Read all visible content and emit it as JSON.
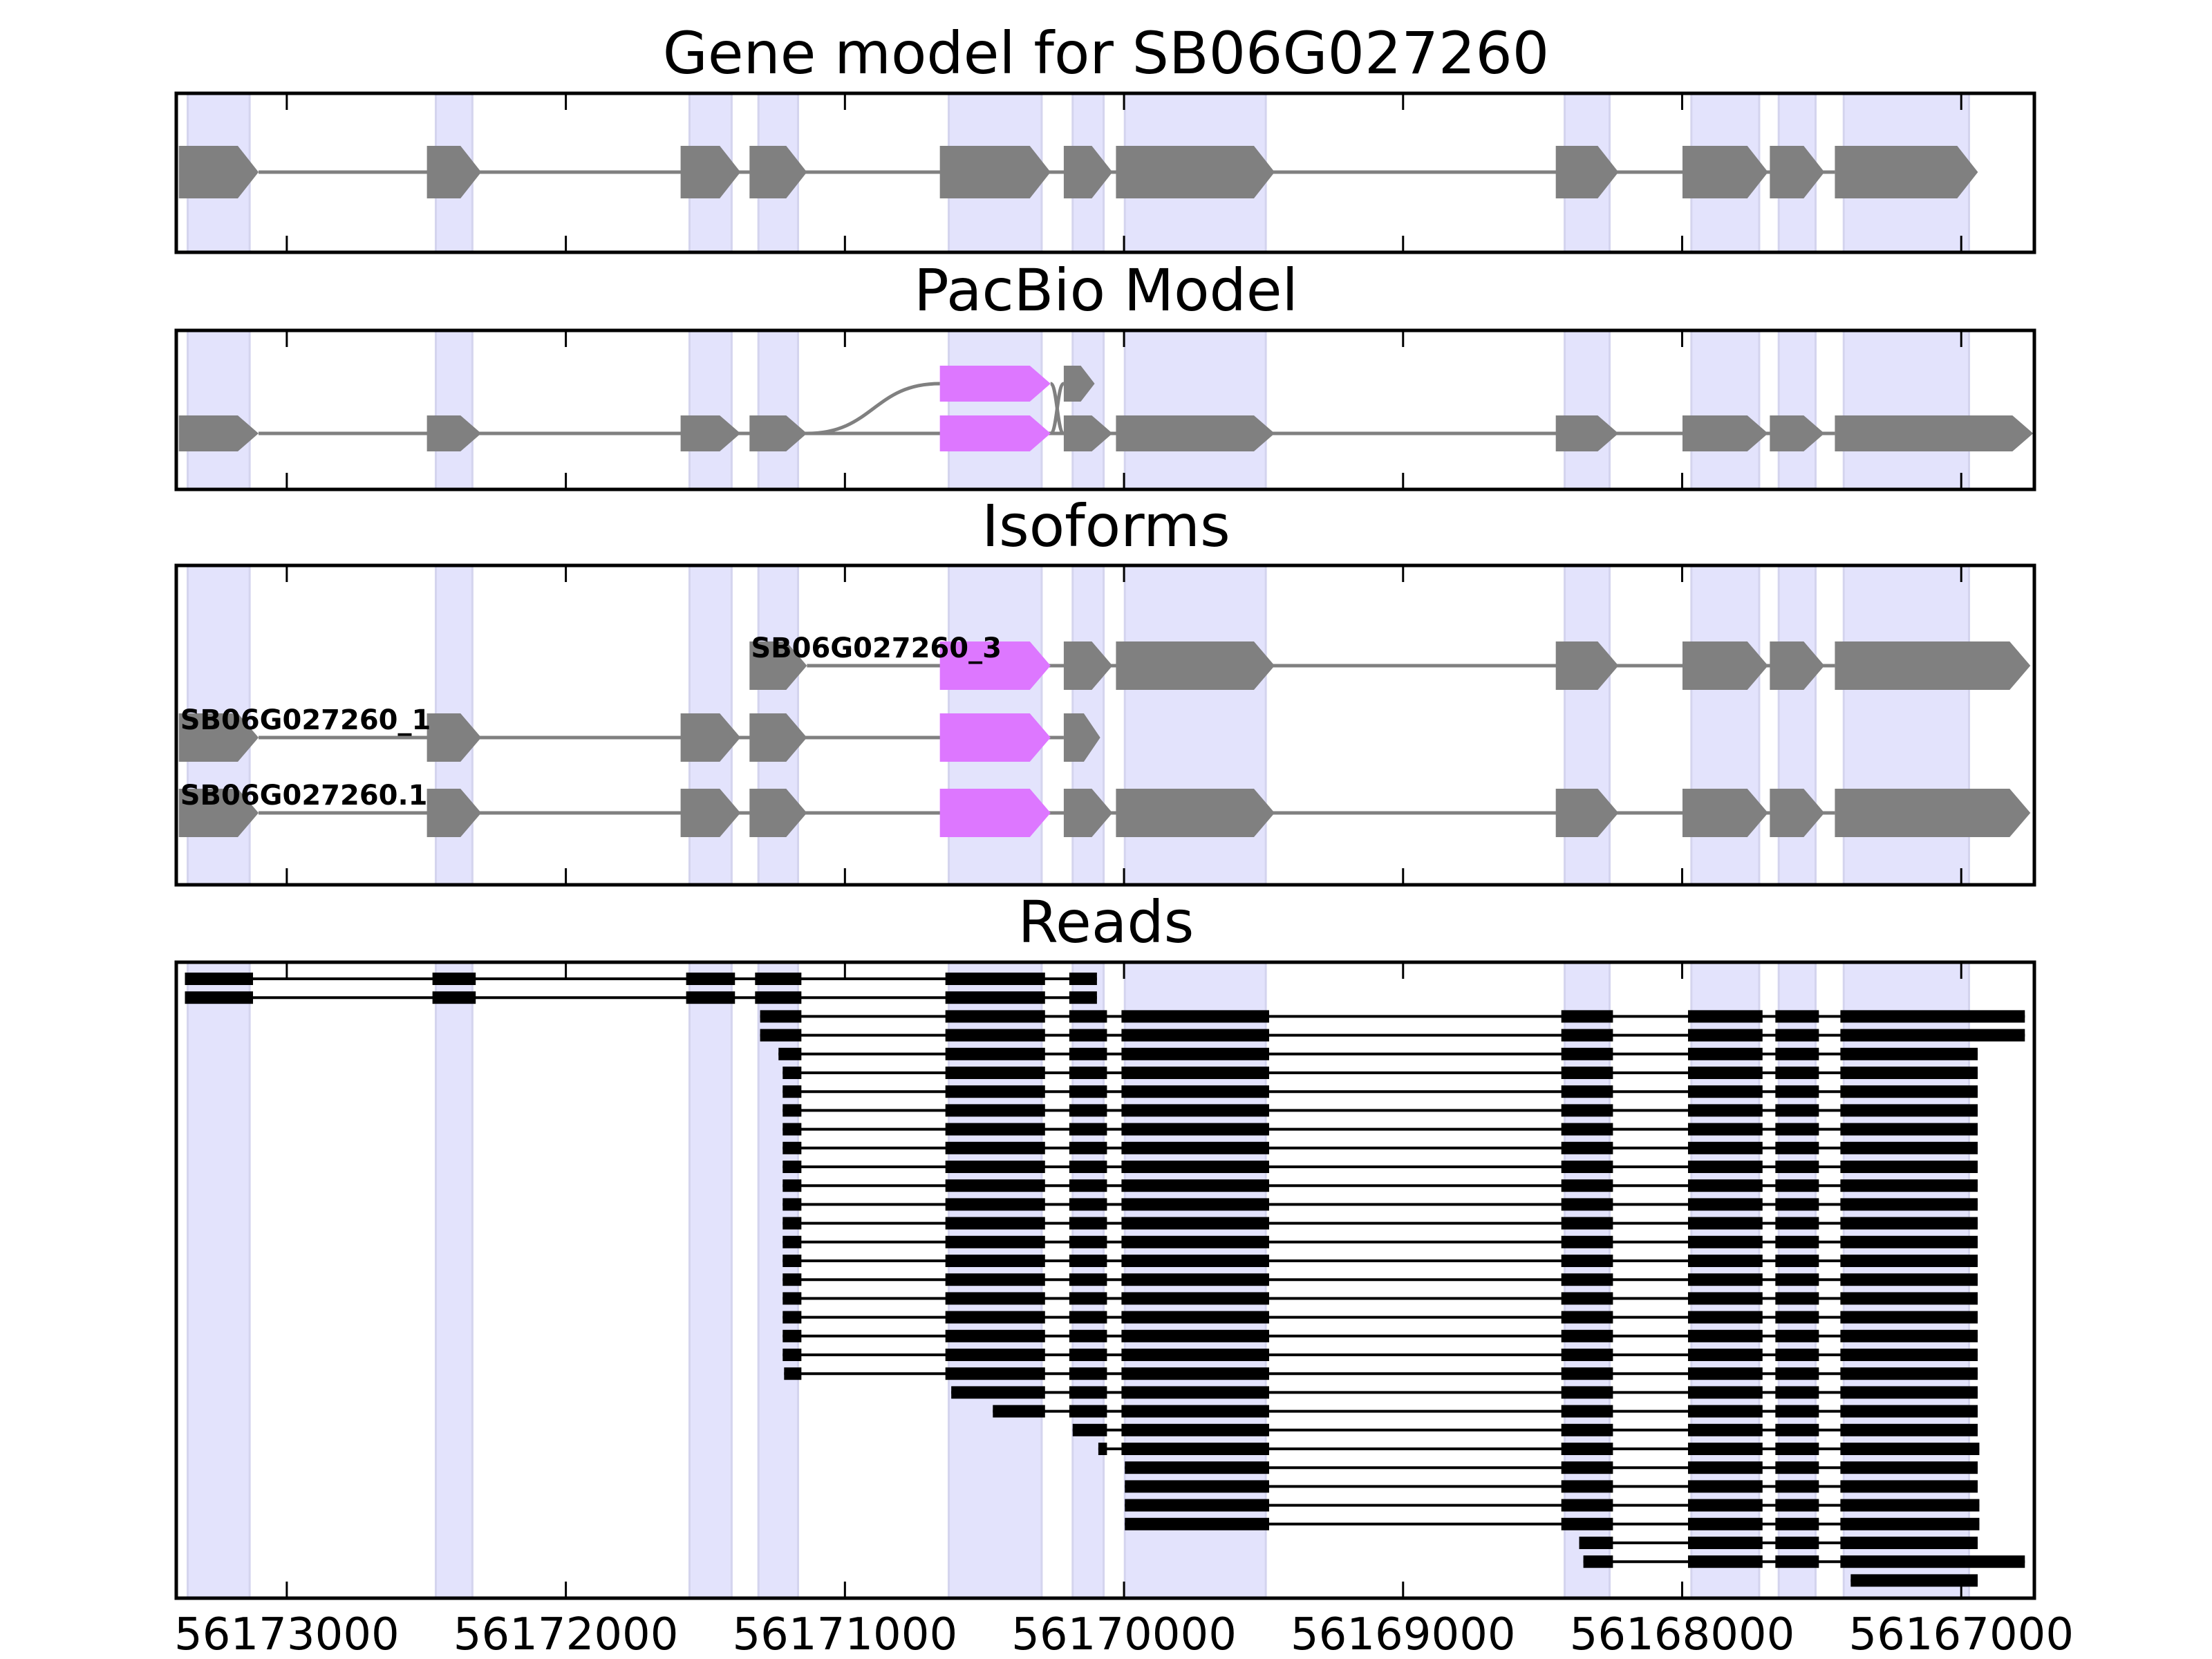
{
  "colors": {
    "gray": "#808080",
    "highlight": "#dd77ff",
    "shade": "#e3e3fc",
    "shade_edge": "#d4d4ee",
    "read": "#000000"
  },
  "axis": {
    "xlim": [
      56173396,
      56166738
    ],
    "ticks": [
      56173000,
      56172000,
      56171000,
      56170000,
      56169000,
      56168000,
      56167000
    ],
    "tick_labels": [
      "56173000",
      "56172000",
      "56171000",
      "56170000",
      "56169000",
      "56168000",
      "56167000"
    ]
  },
  "exons": [
    [
      56173355,
      56173133
    ],
    [
      56172466,
      56172335
    ],
    [
      56171557,
      56171406
    ],
    [
      56171310,
      56171168
    ],
    [
      56170628,
      56170295
    ],
    [
      56170184,
      56170073
    ],
    [
      56169997,
      56169492
    ],
    [
      56168421,
      56168260
    ],
    [
      56167967,
      56167724
    ],
    [
      56167654,
      56167522
    ],
    [
      56167421,
      56166972
    ]
  ],
  "panels": {
    "gene_model": {
      "title": "Gene model for SB06G027260",
      "rows": [
        {
          "label": "",
          "blocks": [
            {
              "e": 0
            },
            {
              "e": 1
            },
            {
              "e": 2
            },
            {
              "e": 3
            },
            {
              "e": 4
            },
            {
              "e": 5
            },
            {
              "e": 6
            },
            {
              "e": 7
            },
            {
              "e": 8
            },
            {
              "e": 9
            },
            {
              "e": 10
            }
          ]
        }
      ]
    },
    "pacbio": {
      "title": "PacBio Model",
      "rows": [
        {
          "label": "",
          "blocks": [
            {
              "e": 0
            },
            {
              "e": 1
            },
            {
              "e": 2
            },
            {
              "e": 3
            },
            {
              "e": 4,
              "hl": true
            },
            {
              "e": 5
            },
            {
              "e": 6
            },
            {
              "e": 7
            },
            {
              "e": 8
            },
            {
              "e": 9
            },
            {
              "e": 10,
              "end": 56166762
            }
          ]
        },
        {
          "label": "",
          "blocks": [
            {
              "e": 4,
              "hl": true
            },
            {
              "e": 5,
              "end": 56170125
            }
          ]
        }
      ]
    },
    "isoforms": {
      "title": "Isoforms",
      "rows": [
        {
          "label": "SB06G027260_3",
          "blocks": [
            {
              "e": 3
            },
            {
              "e": 4,
              "hl": true
            },
            {
              "e": 5
            },
            {
              "e": 6
            },
            {
              "e": 7
            },
            {
              "e": 8
            },
            {
              "e": 9
            },
            {
              "e": 10,
              "end": 56166772
            }
          ]
        },
        {
          "label": "SB06G027260_1",
          "blocks": [
            {
              "e": 0
            },
            {
              "e": 1
            },
            {
              "e": 2
            },
            {
              "e": 3
            },
            {
              "e": 4,
              "hl": true
            },
            {
              "e": 5,
              "end": 56170105
            }
          ]
        },
        {
          "label": "SB06G027260.1",
          "blocks": [
            {
              "e": 0
            },
            {
              "e": 1
            },
            {
              "e": 2
            },
            {
              "e": 3
            },
            {
              "e": 4,
              "hl": true
            },
            {
              "e": 5
            },
            {
              "e": 6
            },
            {
              "e": 7
            },
            {
              "e": 8
            },
            {
              "e": 9
            },
            {
              "e": 10,
              "end": 56166772
            }
          ]
        }
      ]
    },
    "reads": {
      "title": "Reads",
      "rows": [
        {
          "first": 0,
          "last": 5,
          "start": 56173365,
          "end": 56170097
        },
        {
          "first": 0,
          "last": 5,
          "start": 56173365,
          "end": 56170097
        },
        {
          "first": 3,
          "last": 10,
          "start": 56171304,
          "end": 56166772
        },
        {
          "first": 3,
          "last": 10,
          "start": 56171304,
          "end": 56166772
        },
        {
          "first": 3,
          "last": 10,
          "start": 56171238,
          "end": 56166941
        },
        {
          "first": 3,
          "last": 10,
          "start": 56171223,
          "end": 56166941
        },
        {
          "first": 3,
          "last": 10,
          "start": 56171223,
          "end": 56166941
        },
        {
          "first": 3,
          "last": 10,
          "start": 56171223,
          "end": 56166941
        },
        {
          "first": 3,
          "last": 10,
          "start": 56171223,
          "end": 56166941
        },
        {
          "first": 3,
          "last": 10,
          "start": 56171223,
          "end": 56166941
        },
        {
          "first": 3,
          "last": 10,
          "start": 56171223,
          "end": 56166941
        },
        {
          "first": 3,
          "last": 10,
          "start": 56171223,
          "end": 56166941
        },
        {
          "first": 3,
          "last": 10,
          "start": 56171223,
          "end": 56166941
        },
        {
          "first": 3,
          "last": 10,
          "start": 56171223,
          "end": 56166941
        },
        {
          "first": 3,
          "last": 10,
          "start": 56171223,
          "end": 56166941
        },
        {
          "first": 3,
          "last": 10,
          "start": 56171223,
          "end": 56166941
        },
        {
          "first": 3,
          "last": 10,
          "start": 56171223,
          "end": 56166941
        },
        {
          "first": 3,
          "last": 10,
          "start": 56171223,
          "end": 56166941
        },
        {
          "first": 3,
          "last": 10,
          "start": 56171223,
          "end": 56166941
        },
        {
          "first": 3,
          "last": 10,
          "start": 56171223,
          "end": 56166941
        },
        {
          "first": 3,
          "last": 10,
          "start": 56171223,
          "end": 56166941
        },
        {
          "first": 3,
          "last": 10,
          "start": 56171218,
          "end": 56166941
        },
        {
          "first": 4,
          "last": 10,
          "start": 56170619,
          "end": 56166941
        },
        {
          "first": 4,
          "last": 10,
          "start": 56170470,
          "end": 56166941
        },
        {
          "first": 5,
          "last": 10,
          "start": 56170184,
          "end": 56166941
        },
        {
          "first": 5,
          "last": 10,
          "start": 56170092,
          "end": 56166935
        },
        {
          "first": 6,
          "last": 10,
          "start": 56169997,
          "end": 56166941
        },
        {
          "first": 6,
          "last": 10,
          "start": 56169997,
          "end": 56166941
        },
        {
          "first": 6,
          "last": 10,
          "start": 56169997,
          "end": 56166935
        },
        {
          "first": 6,
          "last": 10,
          "start": 56169997,
          "end": 56166935
        },
        {
          "first": 7,
          "last": 10,
          "start": 56168369,
          "end": 56166941
        },
        {
          "first": 7,
          "last": 10,
          "start": 56168354,
          "end": 56166772
        },
        {
          "first": 10,
          "last": 10,
          "start": 56167396,
          "end": 56166941
        }
      ]
    }
  }
}
